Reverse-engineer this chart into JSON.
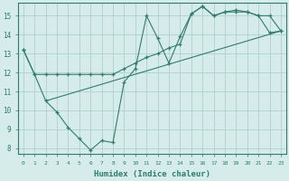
{
  "line1_x": [
    0,
    1,
    2,
    3,
    4,
    5,
    6,
    7,
    8,
    9,
    10,
    11,
    12,
    13,
    14,
    15,
    16,
    17,
    18,
    19,
    20,
    21,
    22,
    23
  ],
  "line1_y": [
    13.2,
    11.9,
    11.9,
    11.9,
    11.9,
    11.9,
    11.9,
    11.9,
    11.9,
    12.2,
    12.5,
    12.8,
    13.0,
    13.3,
    13.5,
    15.1,
    15.5,
    15.0,
    15.2,
    15.3,
    15.2,
    15.0,
    15.0,
    14.2
  ],
  "line2_x": [
    0,
    1,
    2,
    3,
    4,
    5,
    6,
    7,
    8,
    9,
    10,
    11,
    12,
    13,
    14,
    15,
    16,
    17,
    18,
    19,
    20,
    21,
    22,
    23
  ],
  "line2_y": [
    13.2,
    11.9,
    10.5,
    9.9,
    9.1,
    8.5,
    7.9,
    8.4,
    8.3,
    11.5,
    12.2,
    15.0,
    13.8,
    12.5,
    13.9,
    15.1,
    15.5,
    15.0,
    15.2,
    15.2,
    15.2,
    15.0,
    14.1,
    14.2
  ],
  "line3_x": [
    2,
    23
  ],
  "line3_y": [
    10.5,
    14.2
  ],
  "color": "#2e7d6e",
  "bg_color": "#d6ecea",
  "grid_color": "#a8ccc9",
  "xlabel": "Humidex (Indice chaleur)",
  "xlim_min": -0.5,
  "xlim_max": 23.5,
  "ylim_min": 7.7,
  "ylim_max": 15.7,
  "yticks": [
    8,
    9,
    10,
    11,
    12,
    13,
    14,
    15
  ],
  "xticks": [
    0,
    1,
    2,
    3,
    4,
    5,
    6,
    7,
    8,
    9,
    10,
    11,
    12,
    13,
    14,
    15,
    16,
    17,
    18,
    19,
    20,
    21,
    22,
    23
  ]
}
